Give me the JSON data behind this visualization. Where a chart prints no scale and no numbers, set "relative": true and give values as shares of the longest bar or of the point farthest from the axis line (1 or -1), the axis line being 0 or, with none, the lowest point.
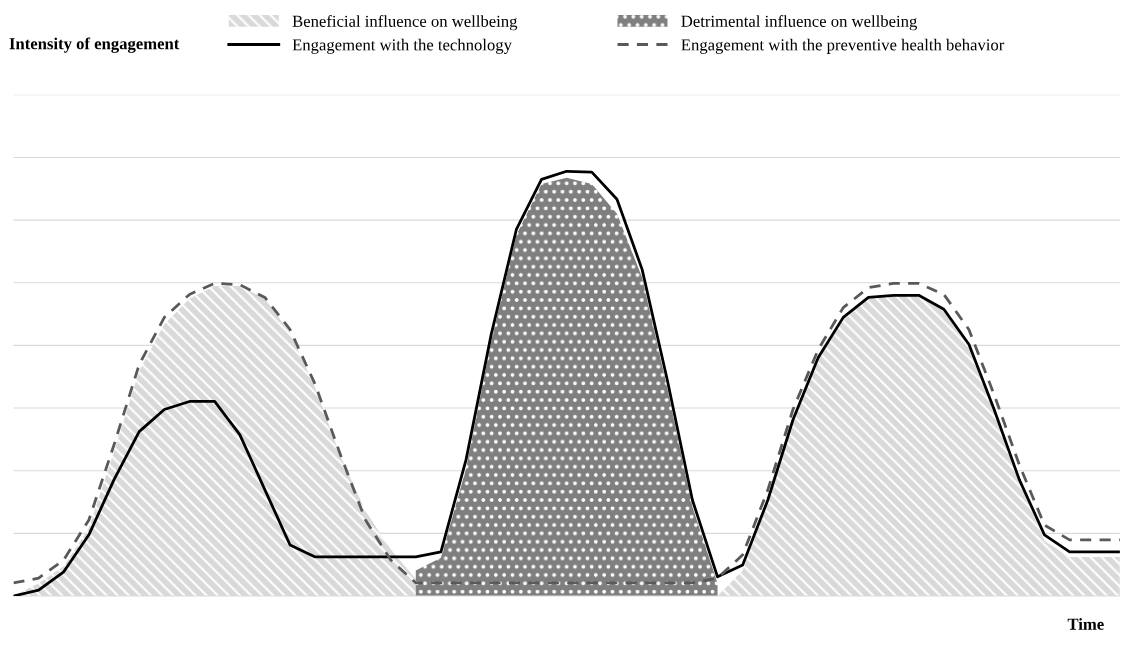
{
  "chart_data": {
    "type": "line",
    "relative": true,
    "annotations": [
      "Intensity of engagement"
    ],
    "xlabel": "Time",
    "grid": "y",
    "legend": "top",
    "tick_labels": false,
    "categories": [
      null,
      null,
      null,
      null,
      null,
      null,
      null,
      null,
      null,
      null,
      null,
      null,
      null,
      null,
      null,
      null,
      null,
      null,
      null,
      null,
      null,
      null,
      null,
      null,
      null,
      null,
      null,
      null,
      null,
      null,
      null,
      null,
      null,
      null,
      null,
      null,
      null,
      null,
      null,
      null,
      null,
      null,
      null,
      null,
      null
    ],
    "series": [
      {
        "name": "Beneficial influence on wellbeing",
        "type": "area",
        "color": "#d9d9d9",
        "values": [
          0.0,
          0.03,
          0.07,
          0.16,
          0.34,
          0.53,
          0.64,
          0.7,
          0.73,
          0.73,
          0.7,
          0.62,
          0.49,
          0.33,
          0.2,
          0.11,
          0.04,
          0.0,
          null,
          null,
          null,
          null,
          null,
          null,
          null,
          null,
          null,
          null,
          0.0,
          0.06,
          0.22,
          0.41,
          0.56,
          0.65,
          0.7,
          0.71,
          0.71,
          0.67,
          0.59,
          0.44,
          0.27,
          0.13,
          0.092,
          0.092,
          0.092
        ]
      },
      {
        "name": "Engagement with the technology",
        "type": "line",
        "color": "#000000",
        "line_style": "solid",
        "values": [
          0.0,
          0.014,
          0.057,
          0.144,
          0.274,
          0.387,
          0.439,
          0.458,
          0.458,
          0.38,
          0.25,
          0.12,
          0.092,
          0.092,
          0.092,
          0.092,
          0.092,
          0.104,
          0.321,
          0.616,
          0.863,
          0.981,
          1.0,
          0.998,
          0.934,
          0.769,
          0.509,
          0.226,
          0.045,
          0.073,
          0.226,
          0.415,
          0.561,
          0.656,
          0.703,
          0.708,
          0.708,
          0.675,
          0.592,
          0.439,
          0.274,
          0.144,
          0.104,
          0.104,
          0.104
        ]
      },
      {
        "name": "Detrimental influence on wellbeing",
        "type": "area",
        "color": "#7f7f7f",
        "values": [
          null,
          null,
          null,
          null,
          null,
          null,
          null,
          null,
          null,
          null,
          null,
          null,
          null,
          null,
          null,
          null,
          0.06,
          0.09,
          0.3,
          0.6,
          0.85,
          0.97,
          0.985,
          0.97,
          0.9,
          0.75,
          0.49,
          0.21,
          0.03,
          null,
          null,
          null,
          null,
          null,
          null,
          null,
          null,
          null,
          null,
          null,
          null,
          null,
          null,
          null,
          null
        ]
      },
      {
        "name": "Engagement with the preventive health behavior",
        "type": "line",
        "color": "#595959",
        "line_style": "dashed",
        "values": [
          0.031,
          0.042,
          0.085,
          0.179,
          0.356,
          0.545,
          0.656,
          0.71,
          0.736,
          0.733,
          0.703,
          0.627,
          0.498,
          0.333,
          0.179,
          0.085,
          0.031,
          0.031,
          0.031,
          0.031,
          0.031,
          0.031,
          0.031,
          0.031,
          0.031,
          0.031,
          0.031,
          0.031,
          0.042,
          0.097,
          0.25,
          0.439,
          0.58,
          0.679,
          0.726,
          0.736,
          0.736,
          0.71,
          0.627,
          0.474,
          0.309,
          0.167,
          0.132,
          0.132,
          0.132
        ]
      }
    ]
  }
}
